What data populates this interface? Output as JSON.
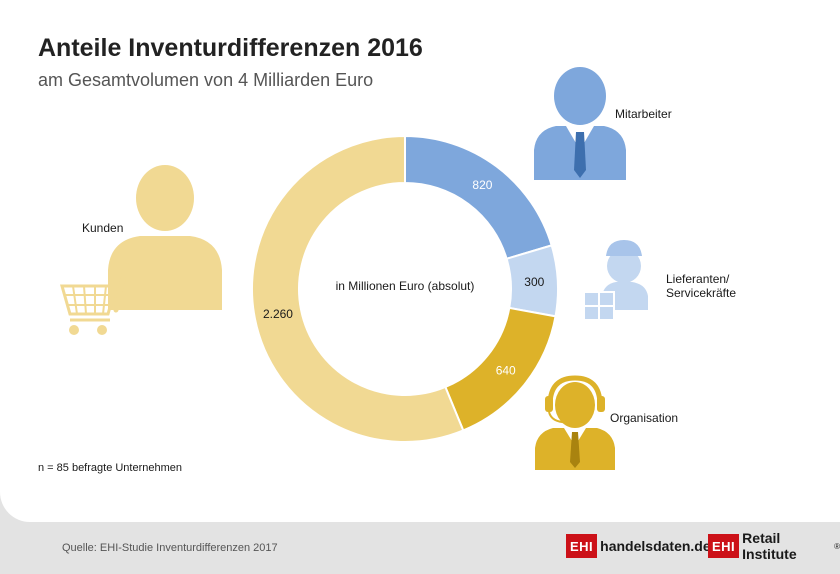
{
  "header": {
    "title": "Anteile Inventurdifferenzen 2016",
    "subtitle": "am Gesamtvolumen von 4 Milliarden Euro"
  },
  "chart_data": {
    "type": "pie",
    "center_label": "in Millionen Euro (absolut)",
    "series": [
      {
        "name": "Mitarbeiter",
        "value": 820,
        "label": "820",
        "color": "#7ea7dc",
        "text_color": "#ffffff"
      },
      {
        "name": "Lieferanten/ Servicekräfte",
        "value": 300,
        "label": "300",
        "color": "#c3d7f0",
        "text_color": "#1a1a1a"
      },
      {
        "name": "Organisation",
        "value": 640,
        "label": "640",
        "color": "#ddb229",
        "text_color": "#ffffff"
      },
      {
        "name": "Kunden",
        "value": 2260,
        "label": "2.260",
        "color": "#f1d993",
        "text_color": "#1a1a1a"
      }
    ]
  },
  "legend": {
    "mitarbeiter": "Mitarbeiter",
    "lieferanten_line1": "Lieferanten/",
    "lieferanten_line2": "Servicekräfte",
    "organisation": "Organisation",
    "kunden": "Kunden"
  },
  "icons": {
    "mitarbeiter": "businessman-icon",
    "lieferanten": "delivery-person-icon",
    "organisation": "headset-operator-icon",
    "kunden": "shopper-with-cart-icon"
  },
  "footer": {
    "sample_note": "n = 85 befragte Unternehmen",
    "source": "Quelle: EHI-Studie Inventurdifferenzen 2017",
    "logo1_box": "EHI",
    "logo1_text": "handelsdaten.de",
    "logo2_box": "EHI",
    "logo2_text": "Retail Institute",
    "logo2_reg": "®"
  }
}
